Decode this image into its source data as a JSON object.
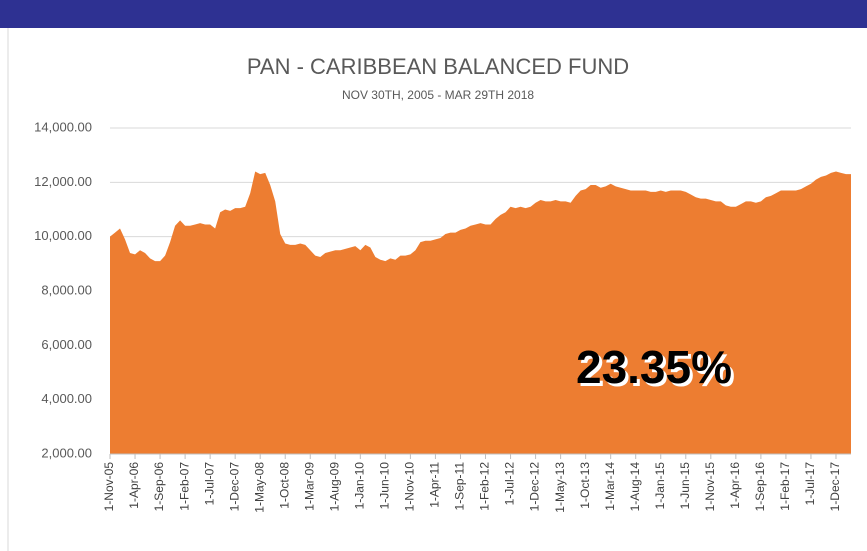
{
  "chart_data": {
    "type": "area",
    "title": "PAN - CARIBBEAN BALANCED FUND",
    "subtitle": "NOV 30TH, 2005 - MAR 29TH 2018",
    "annotation": "23.35%",
    "color": "#ed7d31",
    "grid": true,
    "ylim": [
      2000,
      14000
    ],
    "yticks": [
      {
        "value": 2000,
        "label": "2,000.00"
      },
      {
        "value": 4000,
        "label": "4,000.00"
      },
      {
        "value": 6000,
        "label": "6,000.00"
      },
      {
        "value": 8000,
        "label": "8,000.00"
      },
      {
        "value": 10000,
        "label": "10,000.00"
      },
      {
        "value": 12000,
        "label": "12,000.00"
      },
      {
        "value": 14000,
        "label": "14,000.00"
      }
    ],
    "categories": [
      "1-Nov-05",
      null,
      null,
      null,
      null,
      "1-Apr-06",
      null,
      null,
      null,
      null,
      "1-Sep-06",
      null,
      null,
      null,
      null,
      "1-Feb-07",
      null,
      null,
      null,
      null,
      "1-Jul-07",
      null,
      null,
      null,
      null,
      "1-Dec-07",
      null,
      null,
      null,
      null,
      "1-May-08",
      null,
      null,
      null,
      null,
      "1-Oct-08",
      null,
      null,
      null,
      null,
      "1-Mar-09",
      null,
      null,
      null,
      null,
      "1-Aug-09",
      null,
      null,
      null,
      null,
      "1-Jan-10",
      null,
      null,
      null,
      null,
      "1-Jun-10",
      null,
      null,
      null,
      null,
      "1-Nov-10",
      null,
      null,
      null,
      null,
      "1-Apr-11",
      null,
      null,
      null,
      null,
      "1-Sep-11",
      null,
      null,
      null,
      null,
      "1-Feb-12",
      null,
      null,
      null,
      null,
      "1-Jul-12",
      null,
      null,
      null,
      null,
      "1-Dec-12",
      null,
      null,
      null,
      null,
      "1-May-13",
      null,
      null,
      null,
      null,
      "1-Oct-13",
      null,
      null,
      null,
      null,
      "1-Mar-14",
      null,
      null,
      null,
      null,
      "1-Aug-14",
      null,
      null,
      null,
      null,
      "1-Jan-15",
      null,
      null,
      null,
      null,
      "1-Jun-15",
      null,
      null,
      null,
      null,
      "1-Nov-15",
      null,
      null,
      null,
      null,
      "1-Apr-16",
      null,
      null,
      null,
      null,
      "1-Sep-16",
      null,
      null,
      null,
      null,
      "1-Feb-17",
      null,
      null,
      null,
      null,
      "1-Jul-17",
      null,
      null,
      null,
      null,
      "1-Dec-17",
      null,
      null,
      null
    ],
    "values": [
      10000,
      10150,
      10300,
      9900,
      9400,
      9350,
      9500,
      9400,
      9200,
      9100,
      9100,
      9300,
      9800,
      10400,
      10600,
      10400,
      10400,
      10450,
      10500,
      10450,
      10450,
      10300,
      10900,
      11000,
      10950,
      11050,
      11050,
      11100,
      11600,
      12400,
      12300,
      12350,
      11900,
      11300,
      10100,
      9750,
      9700,
      9700,
      9750,
      9700,
      9500,
      9300,
      9250,
      9400,
      9450,
      9500,
      9500,
      9550,
      9600,
      9650,
      9500,
      9700,
      9600,
      9250,
      9150,
      9100,
      9200,
      9150,
      9300,
      9300,
      9350,
      9500,
      9800,
      9850,
      9850,
      9900,
      9950,
      10100,
      10150,
      10150,
      10250,
      10300,
      10400,
      10450,
      10500,
      10450,
      10450,
      10650,
      10800,
      10900,
      11100,
      11050,
      11100,
      11050,
      11100,
      11250,
      11350,
      11300,
      11300,
      11350,
      11300,
      11300,
      11250,
      11500,
      11700,
      11750,
      11900,
      11900,
      11800,
      11850,
      11950,
      11850,
      11800,
      11750,
      11700,
      11700,
      11700,
      11700,
      11650,
      11650,
      11700,
      11650,
      11700,
      11700,
      11700,
      11650,
      11550,
      11450,
      11400,
      11400,
      11350,
      11300,
      11300,
      11150,
      11100,
      11100,
      11200,
      11300,
      11300,
      11250,
      11300,
      11450,
      11500,
      11600,
      11700,
      11700,
      11700,
      11700,
      11750,
      11850,
      11950,
      12100,
      12200,
      12250,
      12350,
      12400,
      12350,
      12300,
      12300
    ]
  }
}
